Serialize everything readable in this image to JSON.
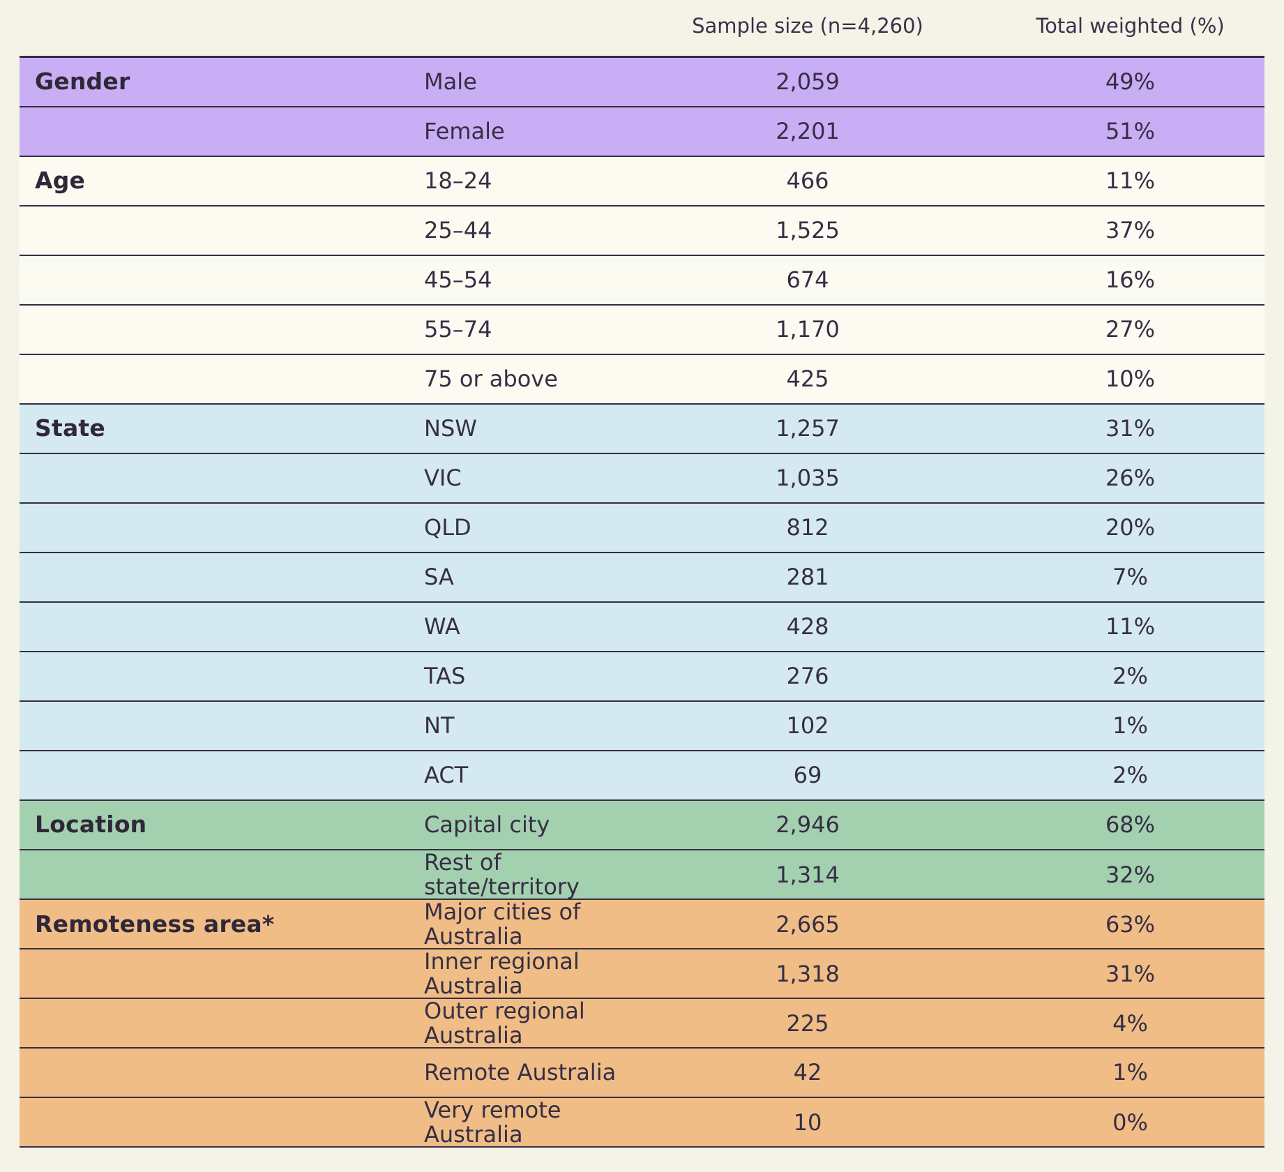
{
  "header": {
    "sample_col": "Sample size (n=4,260)",
    "weighted_col": "Total weighted (%)"
  },
  "colors": {
    "page_background": "#f3f3e8",
    "border": "#362e40",
    "text": "#362e44",
    "gender": "#c9aef5",
    "age": "#fbfbf2",
    "state": "#d5e9f1",
    "location": "#a3d1b0",
    "remoteness": "#f0bd87"
  },
  "sections": [
    {
      "category": "Gender",
      "color_key": "gender",
      "rows": [
        {
          "label": "Male",
          "sample": "2,059",
          "weighted": "49%"
        },
        {
          "label": "Female",
          "sample": "2,201",
          "weighted": "51%"
        }
      ]
    },
    {
      "category": "Age",
      "color_key": "age",
      "rows": [
        {
          "label": "18–24",
          "sample": "466",
          "weighted": "11%"
        },
        {
          "label": "25–44",
          "sample": "1,525",
          "weighted": "37%"
        },
        {
          "label": "45–54",
          "sample": "674",
          "weighted": "16%"
        },
        {
          "label": "55–74",
          "sample": "1,170",
          "weighted": "27%"
        },
        {
          "label": "75 or above",
          "sample": "425",
          "weighted": "10%"
        }
      ]
    },
    {
      "category": "State",
      "color_key": "state",
      "rows": [
        {
          "label": "NSW",
          "sample": "1,257",
          "weighted": "31%"
        },
        {
          "label": "VIC",
          "sample": "1,035",
          "weighted": "26%"
        },
        {
          "label": "QLD",
          "sample": "812",
          "weighted": "20%"
        },
        {
          "label": "SA",
          "sample": "281",
          "weighted": "7%"
        },
        {
          "label": "WA",
          "sample": "428",
          "weighted": "11%"
        },
        {
          "label": "TAS",
          "sample": "276",
          "weighted": "2%"
        },
        {
          "label": "NT",
          "sample": "102",
          "weighted": "1%"
        },
        {
          "label": "ACT",
          "sample": "69",
          "weighted": "2%"
        }
      ]
    },
    {
      "category": "Location",
      "color_key": "location",
      "rows": [
        {
          "label": "Capital city",
          "sample": "2,946",
          "weighted": "68%"
        },
        {
          "label": "Rest of state/territory",
          "sample": "1,314",
          "weighted": "32%"
        }
      ]
    },
    {
      "category": "Remoteness area*",
      "color_key": "remoteness",
      "rows": [
        {
          "label": "Major cities of Australia",
          "sample": "2,665",
          "weighted": "63%"
        },
        {
          "label": "Inner regional Australia",
          "sample": "1,318",
          "weighted": "31%"
        },
        {
          "label": "Outer regional Australia",
          "sample": "225",
          "weighted": "4%"
        },
        {
          "label": "Remote Australia",
          "sample": "42",
          "weighted": "1%"
        },
        {
          "label": "Very remote Australia",
          "sample": "10",
          "weighted": "0%"
        }
      ]
    }
  ]
}
